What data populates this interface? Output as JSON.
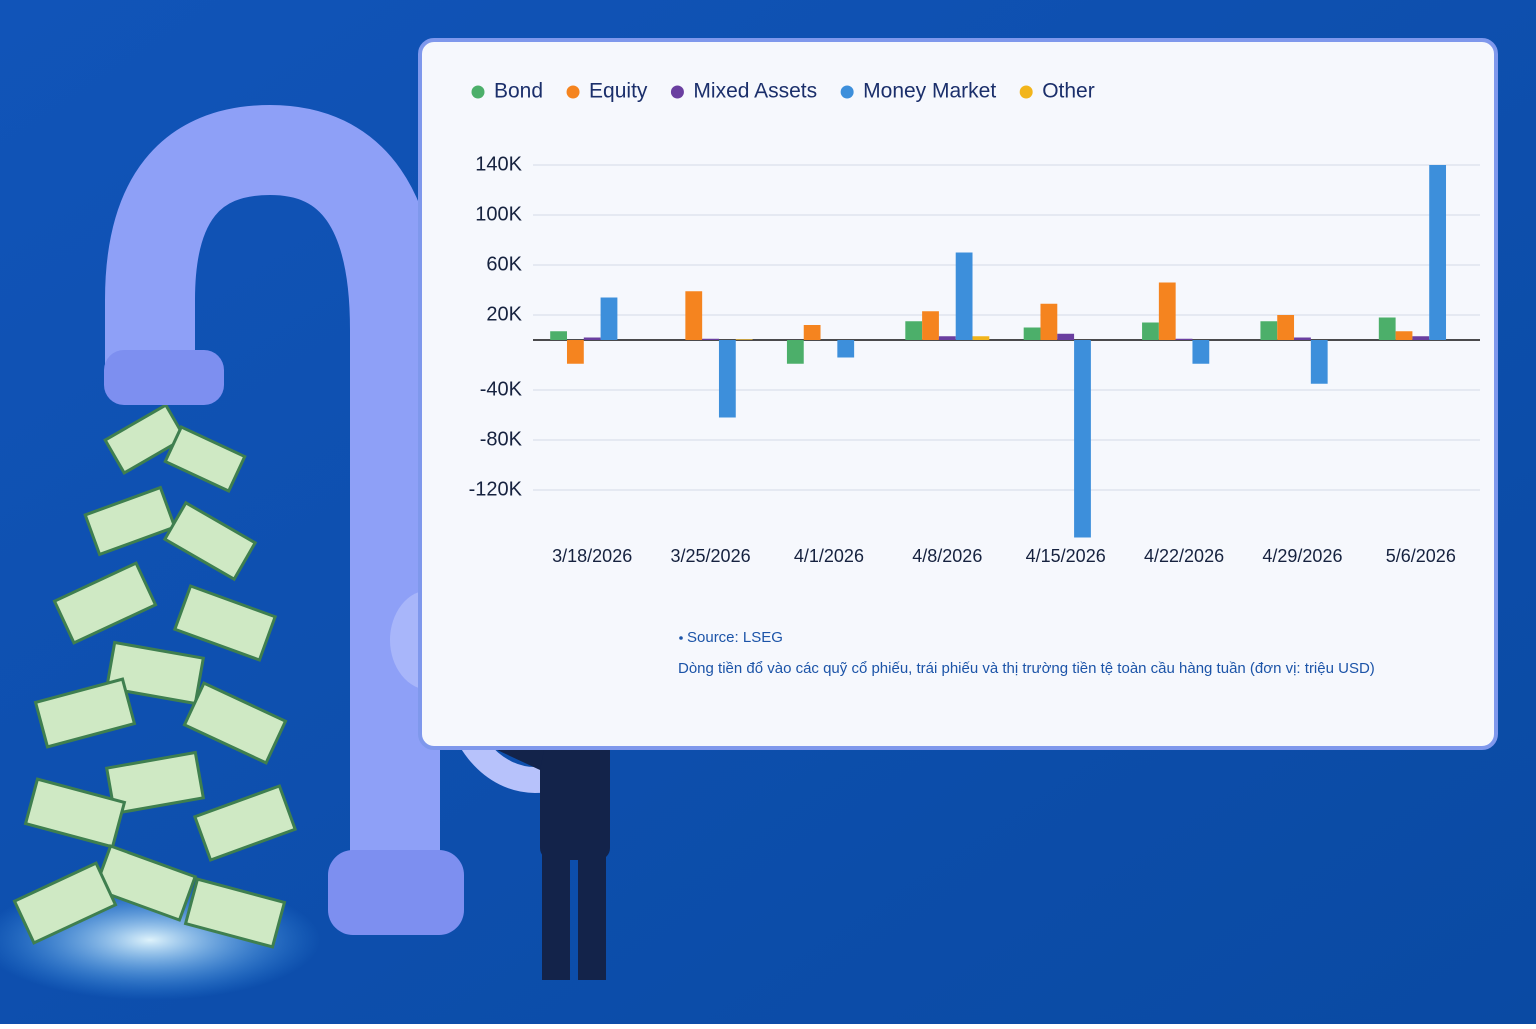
{
  "chart_data": {
    "type": "bar",
    "categories": [
      "3/18/2026",
      "3/25/2026",
      "4/1/2026",
      "4/8/2026",
      "4/15/2026",
      "4/22/2026",
      "4/29/2026",
      "5/6/2026"
    ],
    "series": [
      {
        "name": "Bond",
        "color": "#4caf6a",
        "values": [
          7000,
          0,
          -19000,
          15000,
          10000,
          14000,
          15000,
          18000
        ]
      },
      {
        "name": "Equity",
        "color": "#f5841f",
        "values": [
          -19000,
          39000,
          12000,
          23000,
          29000,
          46000,
          20000,
          7000
        ]
      },
      {
        "name": "Mixed Assets",
        "color": "#6a3fa0",
        "values": [
          2000,
          1000,
          0,
          3000,
          5000,
          1000,
          2000,
          3000
        ]
      },
      {
        "name": "Money Market",
        "color": "#3d8fdb",
        "values": [
          34000,
          -62000,
          -14000,
          70000,
          -158000,
          -19000,
          -35000,
          140000
        ]
      },
      {
        "name": "Other",
        "color": "#f2b51c",
        "values": [
          0,
          500,
          0,
          3000,
          0,
          0,
          0,
          0
        ]
      }
    ],
    "ylim": [
      -160000,
      145000
    ],
    "yticks": [
      {
        "value": 140000,
        "label": "140K"
      },
      {
        "value": 100000,
        "label": "100K"
      },
      {
        "value": 60000,
        "label": "60K"
      },
      {
        "value": 20000,
        "label": "20K"
      },
      {
        "value": -40000,
        "label": "-40K"
      },
      {
        "value": -80000,
        "label": "-80K"
      },
      {
        "value": -120000,
        "label": "-120K"
      }
    ],
    "grid": true,
    "source": "Source: LSEG",
    "note": "Dòng tiền đổ vào các quỹ cổ phiếu, trái phiếu và thị trường tiền tệ toàn cầu hàng tuần (đơn vị: triệu USD)"
  }
}
